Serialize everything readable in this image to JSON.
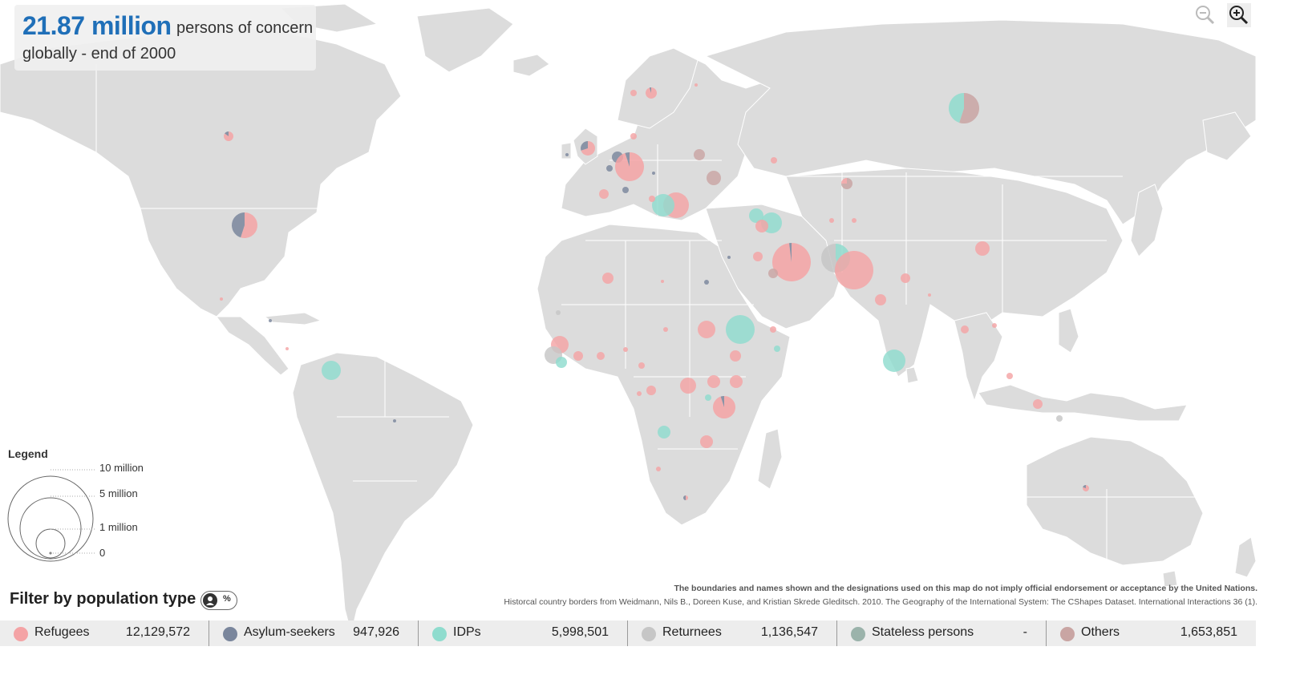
{
  "headline": {
    "value": "21.87 million",
    "unit": "persons of concern",
    "subtitle": "globally - end of 2000"
  },
  "zoom": {
    "zoom_in_icon": "zoom-in-icon",
    "zoom_out_icon": "zoom-out-icon"
  },
  "legend": {
    "title": "Legend",
    "labels": [
      "10 million",
      "5 million",
      "1 million",
      "0"
    ]
  },
  "disclaimer": "The boundaries and names shown and the designations used on this map do not imply official endorsement or acceptance by the United Nations.",
  "source": "Historcal country borders from Weidmann, Nils B., Doreen Kuse, and Kristian Skrede Gleditsch. 2010. The Geography of the International System: The CShapes Dataset. International Interactions 36 (1).",
  "filter": {
    "title": "Filter by population type",
    "toggle_icon": "person-icon",
    "toggle_label": "%",
    "items": [
      {
        "name": "Refugees",
        "count": "12,129,572",
        "color": "#f4a3a5"
      },
      {
        "name": "Asylum-seekers",
        "count": "947,926",
        "color": "#7a869c"
      },
      {
        "name": "IDPs",
        "count": "5,998,501",
        "color": "#8fdcce"
      },
      {
        "name": "Returnees",
        "count": "1,136,547",
        "color": "#c6c6c6"
      },
      {
        "name": "Stateless persons",
        "count": "-",
        "color": "#9bb3ab"
      },
      {
        "name": "Others",
        "count": "1,653,851",
        "color": "#c9a5a3"
      }
    ]
  }
}
